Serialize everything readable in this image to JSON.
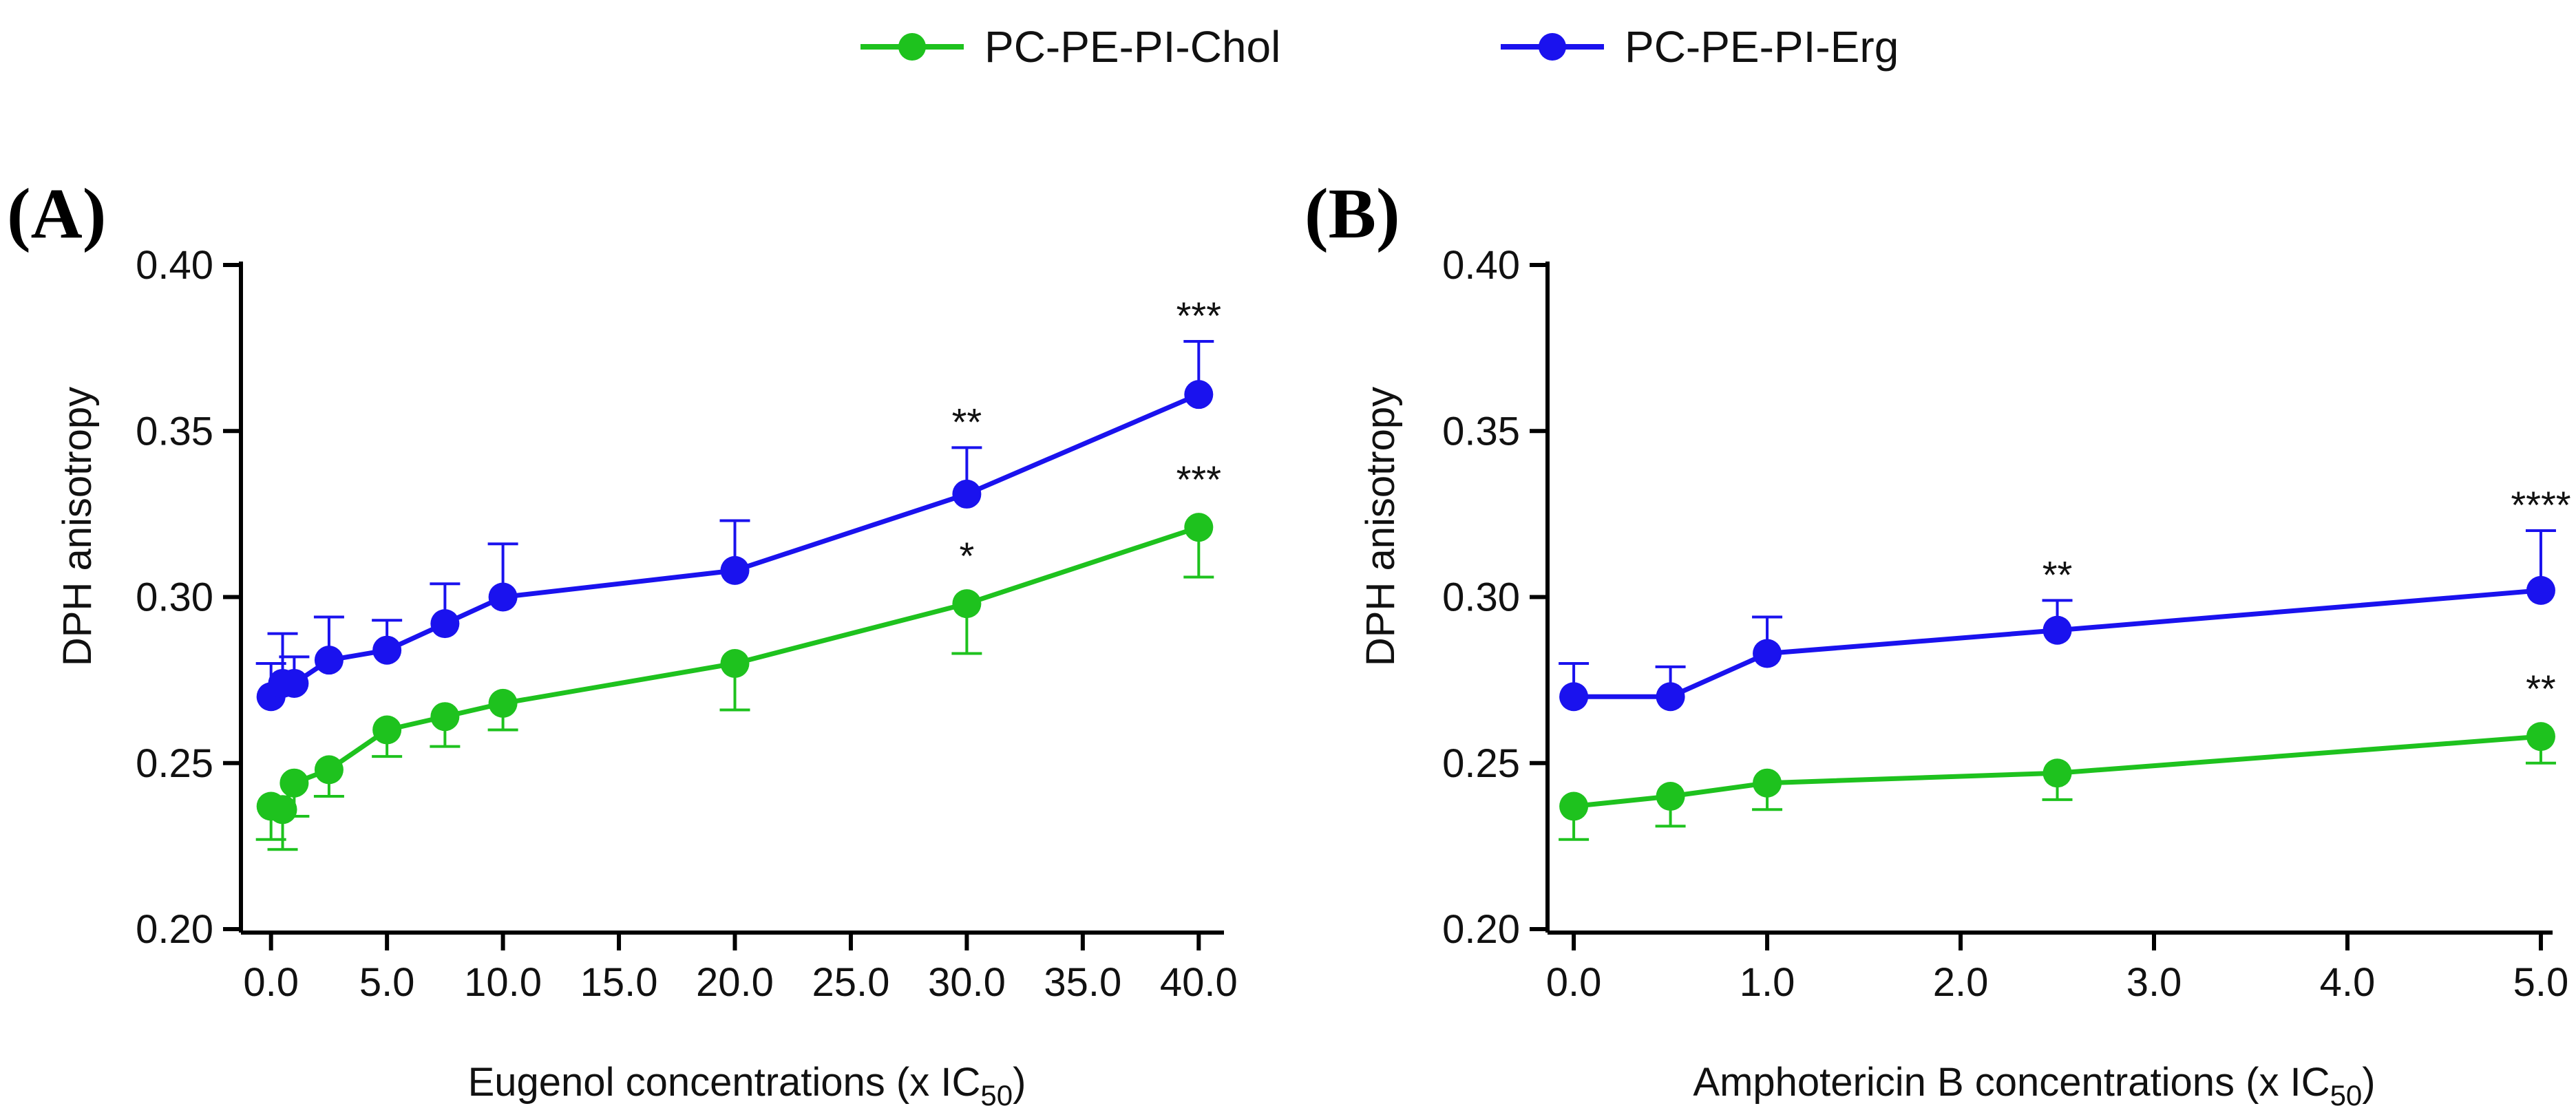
{
  "colors": {
    "chol": "#1ec21e",
    "erg": "#1a12ee",
    "axis": "#000000",
    "text": "#111111"
  },
  "legend": [
    {
      "name": "PC-PE-PI-Chol",
      "color": "#1ec21e"
    },
    {
      "name": "PC-PE-PI-Erg",
      "color": "#1a12ee"
    }
  ],
  "chart_data": [
    {
      "type": "line",
      "panel_label": "(A)",
      "title": "",
      "xlabel_main": "Eugenol concentrations (x IC",
      "xlabel_sub": "50",
      "xlabel_end": ")",
      "ylabel": "DPH anisotropy",
      "xlim": [
        -1,
        41
      ],
      "ylim": [
        0.2,
        0.4
      ],
      "xticks": [
        0,
        5,
        10,
        15,
        20,
        25,
        30,
        35,
        40
      ],
      "xtick_labels": [
        "0.0",
        "5.0",
        "10.0",
        "15.0",
        "20.0",
        "25.0",
        "30.0",
        "35.0",
        "40.0"
      ],
      "yticks": [
        0.2,
        0.25,
        0.3,
        0.35,
        0.4
      ],
      "ytick_labels": [
        "0.20",
        "0.25",
        "0.30",
        "0.35",
        "0.40"
      ],
      "x": [
        0,
        0.5,
        1,
        2.5,
        5,
        7.5,
        10,
        20,
        30,
        40
      ],
      "series": [
        {
          "name": "PC-PE-PI-Chol",
          "values": [
            0.237,
            0.236,
            0.244,
            0.248,
            0.26,
            0.264,
            0.268,
            0.28,
            0.298,
            0.321
          ],
          "errors": [
            0.01,
            0.012,
            0.01,
            0.008,
            0.008,
            0.009,
            0.008,
            0.014,
            0.015,
            0.015
          ],
          "error_dir": "down",
          "annotations": [
            "",
            "",
            "",
            "",
            "",
            "",
            "",
            "",
            "*",
            "***"
          ]
        },
        {
          "name": "PC-PE-PI-Erg",
          "values": [
            0.27,
            0.274,
            0.274,
            0.281,
            0.284,
            0.292,
            0.3,
            0.308,
            0.331,
            0.361
          ],
          "errors": [
            0.01,
            0.015,
            0.008,
            0.013,
            0.009,
            0.012,
            0.016,
            0.015,
            0.014,
            0.016
          ],
          "error_dir": "up",
          "annotations": [
            "",
            "",
            "",
            "",
            "",
            "",
            "",
            "",
            "**",
            "***"
          ]
        }
      ]
    },
    {
      "type": "line",
      "panel_label": "(B)",
      "title": "",
      "xlabel_main": "Amphotericin B concentrations (x IC",
      "xlabel_sub": "50",
      "xlabel_end": ")",
      "ylabel": "DPH anisotropy",
      "xlim": [
        -0.1,
        5.05
      ],
      "ylim": [
        0.2,
        0.4
      ],
      "xticks": [
        0,
        1,
        2,
        3,
        4,
        5
      ],
      "xtick_labels": [
        "0.0",
        "1.0",
        "2.0",
        "3.0",
        "4.0",
        "5.0"
      ],
      "yticks": [
        0.2,
        0.25,
        0.3,
        0.35,
        0.4
      ],
      "ytick_labels": [
        "0.20",
        "0.25",
        "0.30",
        "0.35",
        "0.40"
      ],
      "x": [
        0,
        0.5,
        1,
        2.5,
        5
      ],
      "series": [
        {
          "name": "PC-PE-PI-Chol",
          "values": [
            0.237,
            0.24,
            0.244,
            0.247,
            0.258
          ],
          "errors": [
            0.01,
            0.009,
            0.008,
            0.008,
            0.008
          ],
          "error_dir": "down",
          "annotations": [
            "",
            "",
            "",
            "",
            "**"
          ]
        },
        {
          "name": "PC-PE-PI-Erg",
          "values": [
            0.27,
            0.27,
            0.283,
            0.29,
            0.302
          ],
          "errors": [
            0.01,
            0.009,
            0.011,
            0.009,
            0.018
          ],
          "error_dir": "up",
          "annotations": [
            "",
            "",
            "",
            "**",
            "****"
          ]
        }
      ]
    }
  ]
}
